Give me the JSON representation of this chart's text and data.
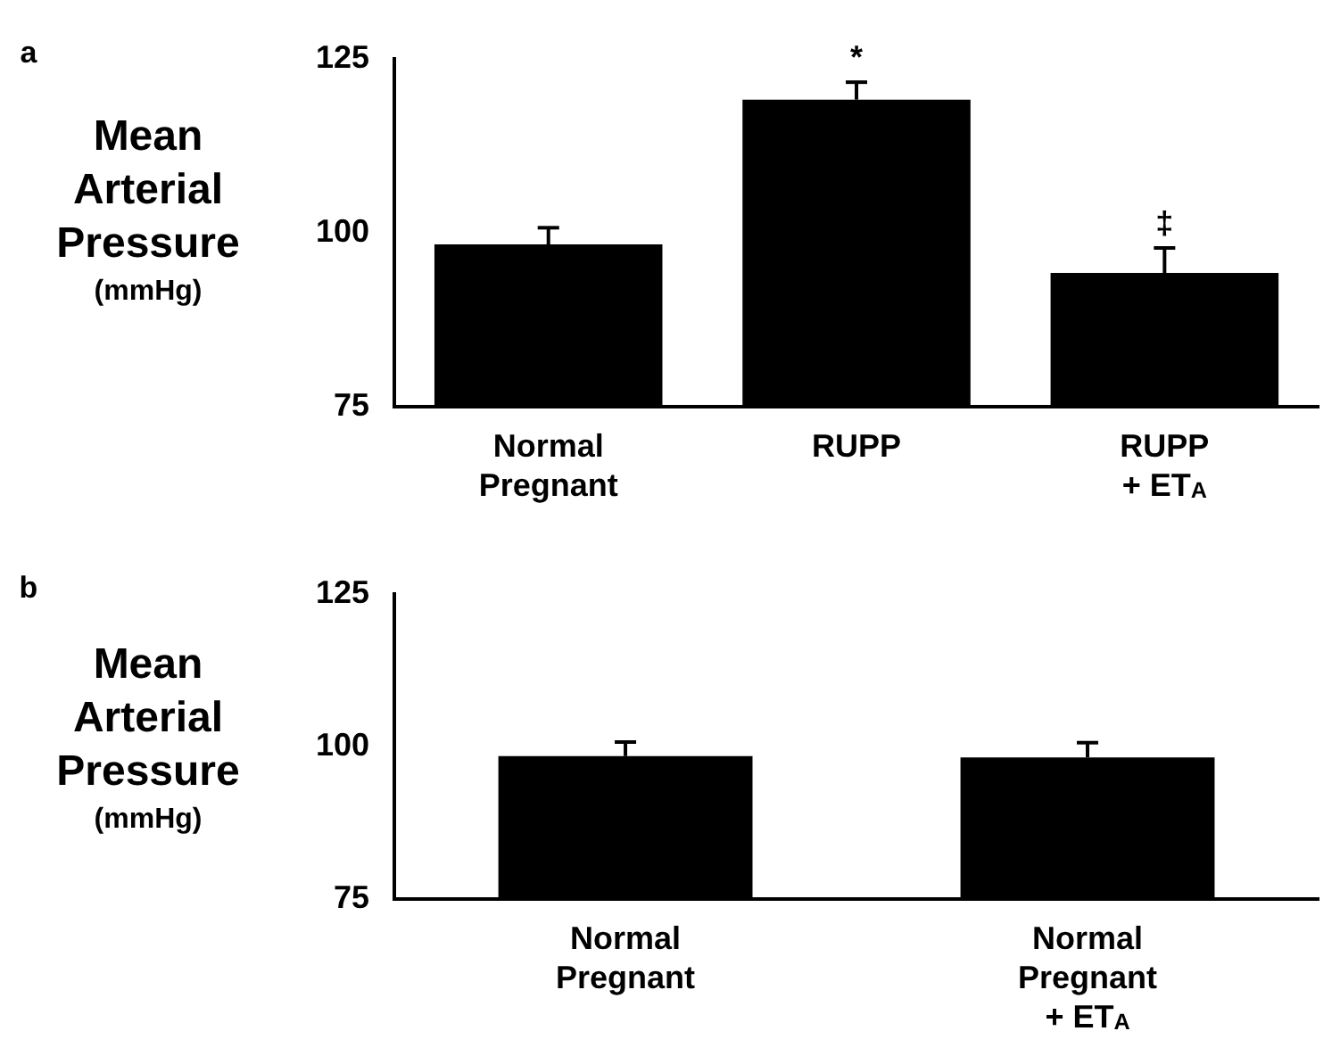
{
  "chart_data": [
    {
      "type": "bar",
      "ylabel": "Mean Arterial Pressure (mmHg)",
      "categories": [
        "Normal Pregnant",
        "RUPP",
        "RUPP + ET$_{A}$"
      ],
      "values": [
        98.3,
        119.1,
        94.2
      ],
      "errors": [
        [
          98.3,
          100.7
        ],
        [
          119.1,
          121.6
        ],
        [
          94.2,
          97.8
        ]
      ],
      "color": "#000000",
      "ylim": [
        75,
        125
      ],
      "yticks": [
        75,
        100,
        125
      ],
      "grid": false,
      "legend": false,
      "annotations": [
        "a",
        {
          "text": "*",
          "x": "RUPP",
          "y": 121.6
        },
        {
          "text": "‡",
          "x": "RUPP + ET$_{A}$",
          "y": 97.8
        }
      ]
    },
    {
      "type": "bar",
      "ylabel": "Mean Arterial Pressure (mmHg)",
      "categories": [
        "Normal Pregnant",
        "Normal Pregnant + ET$_{A}$"
      ],
      "values": [
        98.4,
        98.2
      ],
      "errors": [
        [
          98.4,
          100.7
        ],
        [
          98.2,
          100.6
        ]
      ],
      "color": "#000000",
      "ylim": [
        75,
        125
      ],
      "yticks": [
        75,
        100,
        125
      ],
      "grid": false,
      "legend": false,
      "annotations": [
        "b"
      ]
    }
  ]
}
